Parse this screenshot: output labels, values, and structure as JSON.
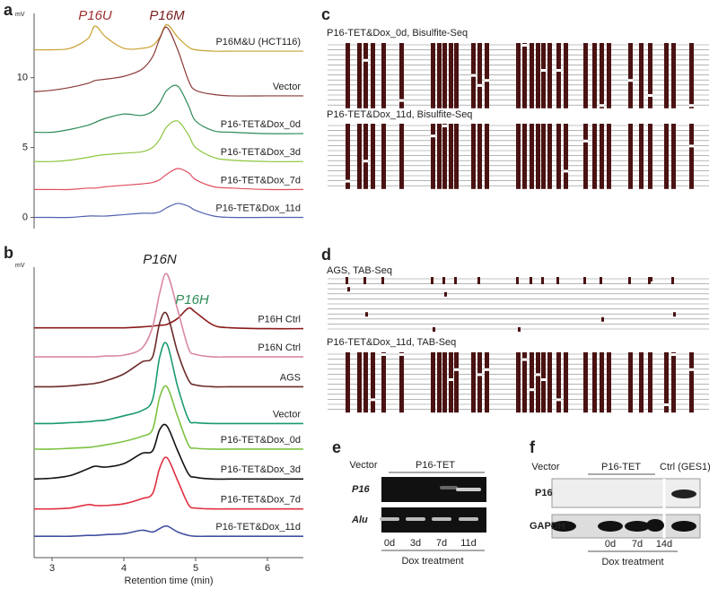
{
  "chart_data": [
    {
      "type": "line",
      "panel": "a",
      "unit": "mV",
      "annotations": [
        {
          "text": "P16U",
          "color": "#a03030"
        },
        {
          "text": "P16M",
          "color": "#7a2020"
        }
      ],
      "x": [
        2.75,
        3.0,
        3.25,
        3.5,
        3.6,
        3.75,
        4.0,
        4.25,
        4.4,
        4.5,
        4.6,
        4.75,
        4.9,
        5.0,
        5.25,
        5.5,
        6.0,
        6.5
      ],
      "xlim": [
        2.75,
        6.5
      ],
      "ylim": [
        -0.8,
        14.6
      ],
      "yticks": [
        0,
        5,
        10
      ],
      "series": [
        {
          "name": "P16M&U (HCT116)",
          "color": "#c8a030",
          "values": [
            12.0,
            12.0,
            12.1,
            12.8,
            13.7,
            12.9,
            12.1,
            12.1,
            12.3,
            12.9,
            13.8,
            12.9,
            12.2,
            12.0,
            11.9,
            11.9,
            11.9,
            11.9
          ]
        },
        {
          "name": "Vector",
          "color": "#8b3a3a",
          "values": [
            9.0,
            9.1,
            9.3,
            9.6,
            9.8,
            9.9,
            10.1,
            10.6,
            11.5,
            12.8,
            13.6,
            12.0,
            9.8,
            9.1,
            8.8,
            8.7,
            8.7,
            8.7
          ]
        },
        {
          "name": "P16-TET&Dox_0d",
          "color": "#2e8b57",
          "values": [
            6.1,
            6.1,
            6.3,
            6.6,
            6.8,
            7.1,
            7.4,
            7.3,
            7.6,
            8.2,
            9.1,
            9.4,
            8.0,
            6.9,
            6.2,
            6.1,
            6.0,
            6.0
          ]
        },
        {
          "name": "P16-TET&Dox_3d",
          "color": "#8cc63f",
          "values": [
            4.0,
            4.0,
            4.1,
            4.3,
            4.4,
            4.5,
            4.6,
            4.7,
            5.0,
            5.6,
            6.5,
            6.9,
            5.9,
            5.0,
            4.3,
            4.1,
            4.0,
            4.0
          ]
        },
        {
          "name": "P16-TET&Dox_7d",
          "color": "#e05060",
          "values": [
            2.0,
            2.0,
            2.0,
            2.1,
            2.1,
            2.2,
            2.3,
            2.4,
            2.5,
            2.7,
            3.1,
            3.5,
            3.2,
            2.7,
            2.2,
            2.1,
            2.0,
            2.0
          ]
        },
        {
          "name": "P16-TET&Dox_11d",
          "color": "#5060b0",
          "values": [
            0,
            0,
            0,
            0.1,
            0.1,
            0.1,
            0.2,
            0.3,
            0.3,
            0.4,
            0.7,
            1.0,
            0.8,
            0.5,
            0.1,
            0.0,
            0.0,
            0.0
          ]
        }
      ]
    },
    {
      "type": "line",
      "panel": "b",
      "unit": "mV",
      "xlabel": "Retention time (min)",
      "annotations": [
        {
          "text": "P16N",
          "color": "#222222"
        },
        {
          "text": "P16H",
          "color": "#2e8b57"
        }
      ],
      "x": [
        2.75,
        3.0,
        3.25,
        3.5,
        3.6,
        3.75,
        4.0,
        4.25,
        4.4,
        4.5,
        4.6,
        4.75,
        4.9,
        5.0,
        5.25,
        5.5,
        6.0,
        6.5
      ],
      "xlim": [
        2.75,
        6.5
      ],
      "xticks": [
        3,
        4,
        5,
        6
      ],
      "ylim": [
        0,
        34
      ],
      "series": [
        {
          "name": "P16H Ctrl",
          "color": "#8b1a1a",
          "values": [
            26.9,
            26.9,
            26.9,
            26.9,
            26.9,
            26.9,
            26.9,
            27.0,
            27.1,
            27.2,
            27.3,
            28.0,
            29.2,
            28.7,
            27.2,
            26.9,
            26.8,
            26.8
          ]
        },
        {
          "name": "P16N Ctrl",
          "color": "#d88aa0",
          "values": [
            23.5,
            23.5,
            23.5,
            23.5,
            23.5,
            23.6,
            23.7,
            24.5,
            27.0,
            31.0,
            33.2,
            29.0,
            24.5,
            23.8,
            23.5,
            23.5,
            23.5,
            23.5
          ]
        },
        {
          "name": "AGS",
          "color": "#6b2a2a",
          "values": [
            20.0,
            20.0,
            20.1,
            20.3,
            20.4,
            20.7,
            21.5,
            22.9,
            23.5,
            27.5,
            28.5,
            24.0,
            20.8,
            20.2,
            20.0,
            20.0,
            20.0,
            20.0
          ]
        },
        {
          "name": "Vector",
          "color": "#1a9a70",
          "values": [
            15.7,
            15.7,
            15.8,
            15.9,
            16.0,
            16.1,
            16.6,
            17.2,
            18.5,
            23.5,
            25.0,
            20.0,
            16.2,
            15.8,
            15.7,
            15.7,
            15.7,
            15.7
          ]
        },
        {
          "name": "P16-TET&Dox_0d",
          "color": "#7cc242",
          "values": [
            12.7,
            12.7,
            12.8,
            12.9,
            13.0,
            13.2,
            13.6,
            14.2,
            15.0,
            18.8,
            20.0,
            16.5,
            13.2,
            12.8,
            12.7,
            12.7,
            12.7,
            12.7
          ]
        },
        {
          "name": "P16-TET&Dox_3d",
          "color": "#111111",
          "values": [
            9.2,
            9.3,
            9.6,
            10.4,
            10.7,
            10.6,
            11.0,
            12.2,
            12.5,
            15.0,
            15.4,
            12.5,
            9.8,
            9.4,
            9.2,
            9.2,
            9.2,
            9.2
          ]
        },
        {
          "name": "P16-TET&Dox_7d",
          "color": "#e03040",
          "values": [
            5.7,
            5.7,
            5.8,
            6.2,
            6.1,
            6.1,
            6.3,
            6.9,
            7.5,
            10.5,
            11.7,
            9.0,
            6.2,
            5.8,
            5.7,
            5.7,
            5.7,
            5.7
          ]
        },
        {
          "name": "P16-TET&Dox_11d",
          "color": "#4050a0",
          "values": [
            2.5,
            2.5,
            2.5,
            2.6,
            2.6,
            2.7,
            2.8,
            3.2,
            3.0,
            3.4,
            3.7,
            3.0,
            2.6,
            2.5,
            2.5,
            2.5,
            2.5,
            2.5
          ]
        }
      ]
    }
  ],
  "panel_c": {
    "label": "c",
    "maps": [
      "P16-TET&Dox_0d, Bisulfite-Seq",
      "P16-TET&Dox_11d, Bisulfite-Seq"
    ]
  },
  "panel_d": {
    "label": "d",
    "maps": [
      "AGS, TAB-Seq",
      "P16-TET&Dox_11d, TAB-Seq"
    ]
  },
  "panel_e": {
    "label": "e",
    "vector": "Vector",
    "group": "P16-TET",
    "rows": [
      "P16",
      "Alu"
    ],
    "lanes": [
      "0d",
      "3d",
      "7d",
      "11d"
    ],
    "treatment": "Dox treatment"
  },
  "panel_f": {
    "label": "f",
    "vector": "Vector",
    "group": "P16-TET",
    "control": "Ctrl (GES1)",
    "rows": [
      "P16",
      "GAPDH"
    ],
    "lanes": [
      "0d",
      "7d",
      "14d"
    ],
    "treatment": "Dox treatment"
  }
}
